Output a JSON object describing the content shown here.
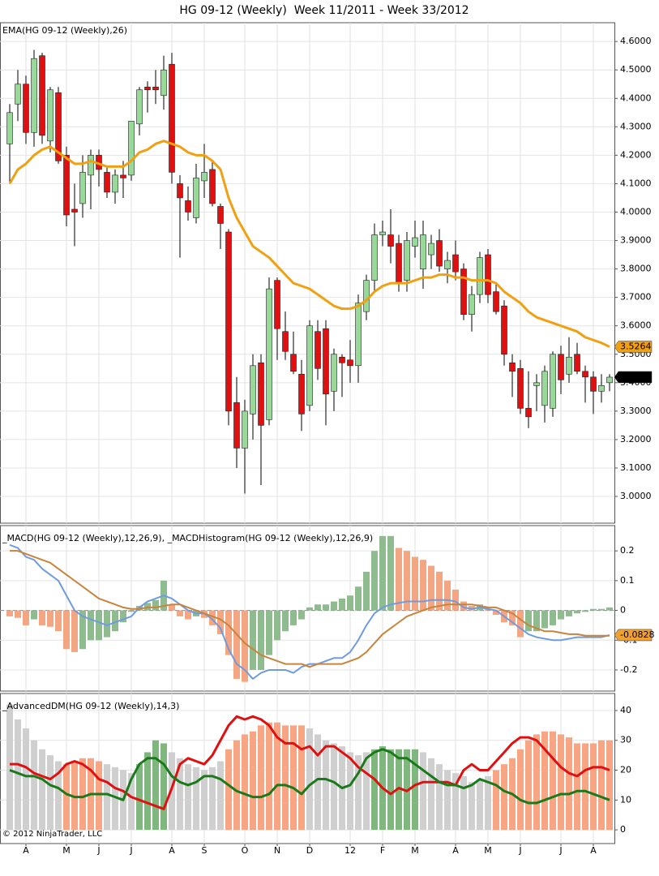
{
  "chart_data": [
    {
      "type": "candlestick",
      "title": "HG 09-12 (Weekly)  Week 11/2011 - Week 33/2012",
      "up_color": "#98d898",
      "down_color": "#e01010",
      "open": [
        4.24,
        4.38,
        4.45,
        4.28,
        4.55,
        4.25,
        4.42,
        4.2,
        4.01,
        4.03,
        4.13,
        4.2,
        4.14,
        4.07,
        4.13,
        4.13,
        4.31,
        4.44,
        4.44,
        4.41,
        4.52,
        4.1,
        4.04,
        3.98,
        4.11,
        4.15,
        4.02,
        3.93,
        3.33,
        3.17,
        3.29,
        3.47,
        3.27,
        3.76,
        3.58,
        3.5,
        3.43,
        3.32,
        3.58,
        3.59,
        3.37,
        3.49,
        3.48,
        3.46,
        3.65,
        3.76,
        3.92,
        3.92,
        3.89,
        3.76,
        3.88,
        3.8,
        3.85,
        3.9,
        3.8,
        3.85,
        3.8,
        3.64,
        3.71,
        3.85,
        3.72,
        3.67,
        3.47,
        3.45,
        3.31,
        3.39,
        3.32,
        3.31,
        3.5,
        3.43,
        3.5,
        3.44,
        3.42,
        3.37,
        3.4
      ],
      "high": [
        4.38,
        4.5,
        4.48,
        4.57,
        4.56,
        4.44,
        4.44,
        4.23,
        4.1,
        4.2,
        4.22,
        4.22,
        4.16,
        4.15,
        4.18,
        4.32,
        4.44,
        4.46,
        4.5,
        4.55,
        4.56,
        4.13,
        4.09,
        4.17,
        4.24,
        4.18,
        4.03,
        3.94,
        3.42,
        3.34,
        3.5,
        3.5,
        3.77,
        3.77,
        3.65,
        3.58,
        3.48,
        3.62,
        3.62,
        3.62,
        3.52,
        3.5,
        3.55,
        3.71,
        3.78,
        3.96,
        3.97,
        4.01,
        3.92,
        3.93,
        3.97,
        3.97,
        3.92,
        3.94,
        3.86,
        3.9,
        3.82,
        3.74,
        3.86,
        3.87,
        3.75,
        3.69,
        3.5,
        3.48,
        3.44,
        3.43,
        3.46,
        3.51,
        3.53,
        3.56,
        3.54,
        3.46,
        3.44,
        3.43,
        3.43
      ],
      "low": [
        4.1,
        4.32,
        4.24,
        4.23,
        4.24,
        4.21,
        4.17,
        3.95,
        3.88,
        3.98,
        4.01,
        4.09,
        4.05,
        4.03,
        4.05,
        4.11,
        4.27,
        4.35,
        4.38,
        4.36,
        4.1,
        3.84,
        3.97,
        3.96,
        4.05,
        4.02,
        3.87,
        3.25,
        3.1,
        3.01,
        3.2,
        3.04,
        3.25,
        3.48,
        3.48,
        3.43,
        3.23,
        3.3,
        3.41,
        3.25,
        3.3,
        3.35,
        3.4,
        3.4,
        3.62,
        3.72,
        3.88,
        3.82,
        3.72,
        3.72,
        3.84,
        3.73,
        3.8,
        3.79,
        3.75,
        3.76,
        3.62,
        3.58,
        3.68,
        3.68,
        3.64,
        3.46,
        3.35,
        3.29,
        3.24,
        3.3,
        3.26,
        3.28,
        3.36,
        3.4,
        3.43,
        3.33,
        3.29,
        3.33,
        3.37
      ],
      "close": [
        4.35,
        4.45,
        4.28,
        4.54,
        4.27,
        4.43,
        4.18,
        3.99,
        4.0,
        4.14,
        4.2,
        4.15,
        4.07,
        4.13,
        4.12,
        4.32,
        4.43,
        4.43,
        4.43,
        4.5,
        4.14,
        4.05,
        4.0,
        4.12,
        4.14,
        4.03,
        3.96,
        3.3,
        3.17,
        3.3,
        3.46,
        3.25,
        3.73,
        3.59,
        3.51,
        3.44,
        3.29,
        3.6,
        3.45,
        3.36,
        3.5,
        3.47,
        3.46,
        3.68,
        3.76,
        3.92,
        3.93,
        3.88,
        3.75,
        3.9,
        3.91,
        3.92,
        3.89,
        3.81,
        3.83,
        3.79,
        3.64,
        3.71,
        3.84,
        3.71,
        3.65,
        3.5,
        3.44,
        3.31,
        3.28,
        3.4,
        3.44,
        3.5,
        3.41,
        3.49,
        3.44,
        3.42,
        3.37,
        3.39,
        3.4195
      ],
      "series": [
        {
          "name": "EMA(HG 09-12 (Weekly),26)",
          "color": "#f0a010",
          "values": [
            4.1,
            4.15,
            4.17,
            4.2,
            4.22,
            4.23,
            4.21,
            4.19,
            4.17,
            4.17,
            4.18,
            4.17,
            4.16,
            4.16,
            4.16,
            4.18,
            4.21,
            4.22,
            4.24,
            4.25,
            4.24,
            4.23,
            4.21,
            4.2,
            4.2,
            4.18,
            4.15,
            4.05,
            3.98,
            3.93,
            3.88,
            3.86,
            3.84,
            3.81,
            3.78,
            3.75,
            3.74,
            3.73,
            3.71,
            3.69,
            3.67,
            3.66,
            3.66,
            3.67,
            3.69,
            3.72,
            3.74,
            3.75,
            3.75,
            3.75,
            3.76,
            3.77,
            3.77,
            3.78,
            3.78,
            3.77,
            3.77,
            3.76,
            3.76,
            3.76,
            3.75,
            3.72,
            3.7,
            3.68,
            3.65,
            3.63,
            3.62,
            3.61,
            3.6,
            3.59,
            3.58,
            3.56,
            3.55,
            3.54,
            3.5264
          ]
        }
      ],
      "ylim": [
        2.906,
        4.666
      ],
      "yticks": [
        {
          "value": 3.0,
          "label": "3.0000"
        },
        {
          "value": 3.1,
          "label": "3.1000"
        },
        {
          "value": 3.2,
          "label": "3.2000"
        },
        {
          "value": 3.3,
          "label": "3.3000"
        },
        {
          "value": 3.4,
          "label": "3.4000"
        },
        {
          "value": 3.5,
          "label": "3.5000"
        },
        {
          "value": 3.6,
          "label": "3.6000"
        },
        {
          "value": 3.7,
          "label": "3.7000"
        },
        {
          "value": 3.8,
          "label": "3.8000"
        },
        {
          "value": 3.9,
          "label": "3.9000"
        },
        {
          "value": 4.0,
          "label": "4.0000"
        },
        {
          "value": 4.1,
          "label": "4.1000"
        },
        {
          "value": 4.2,
          "label": "4.2000"
        },
        {
          "value": 4.3,
          "label": "4.3000"
        },
        {
          "value": 4.4,
          "label": "4.4000"
        },
        {
          "value": 4.5,
          "label": "4.5000"
        },
        {
          "value": 4.6,
          "label": "4.6000"
        }
      ],
      "grid": true
    },
    {
      "type": "macd",
      "label": "_MACD(HG 09-12 (Weekly),12,26,9), _MACDHistogram(HG 09-12 (Weekly),12,26,9)",
      "up_color": "#8fbc8f",
      "down_color": "#f4a582",
      "histogram": [
        -0.02,
        -0.025,
        -0.05,
        -0.03,
        -0.05,
        -0.055,
        -0.07,
        -0.13,
        -0.14,
        -0.13,
        -0.1,
        -0.1,
        -0.09,
        -0.07,
        -0.04,
        -0.005,
        0.015,
        0.025,
        0.035,
        0.1,
        0.02,
        -0.02,
        -0.03,
        -0.02,
        -0.025,
        -0.05,
        -0.08,
        -0.15,
        -0.23,
        -0.24,
        -0.2,
        -0.2,
        -0.15,
        -0.1,
        -0.07,
        -0.05,
        -0.03,
        0.01,
        0.02,
        0.02,
        0.03,
        0.04,
        0.05,
        0.08,
        0.13,
        0.2,
        0.25,
        0.25,
        0.21,
        0.2,
        0.18,
        0.17,
        0.15,
        0.13,
        0.1,
        0.07,
        0.03,
        0.015,
        0.02,
        0.005,
        -0.015,
        -0.04,
        -0.05,
        -0.09,
        -0.07,
        -0.07,
        -0.06,
        -0.05,
        -0.03,
        -0.02,
        -0.01,
        -0.005,
        0.005,
        0.005,
        0.01
      ],
      "series": [
        {
          "color": "#6f9be0",
          "values": [
            0.22,
            0.21,
            0.18,
            0.17,
            0.14,
            0.12,
            0.1,
            0.05,
            0.0,
            -0.02,
            -0.03,
            -0.04,
            -0.05,
            -0.04,
            -0.03,
            -0.02,
            0.01,
            0.03,
            0.04,
            0.05,
            0.04,
            0.02,
            0.0,
            -0.01,
            -0.01,
            -0.03,
            -0.06,
            -0.13,
            -0.18,
            -0.2,
            -0.23,
            -0.21,
            -0.2,
            -0.2,
            -0.2,
            -0.21,
            -0.19,
            -0.18,
            -0.18,
            -0.17,
            -0.16,
            -0.16,
            -0.14,
            -0.1,
            -0.05,
            -0.01,
            0.01,
            0.02,
            0.025,
            0.03,
            0.03,
            0.03,
            0.035,
            0.035,
            0.035,
            0.03,
            0.01,
            0.005,
            0.01,
            0.005,
            0.0,
            -0.02,
            -0.04,
            -0.06,
            -0.08,
            -0.09,
            -0.095,
            -0.1,
            -0.1,
            -0.095,
            -0.09,
            -0.09,
            -0.09,
            -0.09,
            -0.0828
          ]
        },
        {
          "color": "#c8843c",
          "values": [
            0.2,
            0.2,
            0.19,
            0.18,
            0.17,
            0.16,
            0.14,
            0.12,
            0.1,
            0.08,
            0.06,
            0.04,
            0.03,
            0.02,
            0.01,
            0.005,
            0.005,
            0.01,
            0.01,
            0.015,
            0.02,
            0.02,
            0.01,
            0.0,
            -0.01,
            -0.02,
            -0.03,
            -0.05,
            -0.08,
            -0.11,
            -0.13,
            -0.15,
            -0.16,
            -0.17,
            -0.18,
            -0.18,
            -0.18,
            -0.19,
            -0.18,
            -0.18,
            -0.18,
            -0.18,
            -0.17,
            -0.16,
            -0.14,
            -0.11,
            -0.08,
            -0.06,
            -0.04,
            -0.02,
            -0.01,
            0.0,
            0.01,
            0.015,
            0.02,
            0.02,
            0.02,
            0.02,
            0.015,
            0.01,
            0.01,
            0.0,
            -0.01,
            -0.03,
            -0.05,
            -0.06,
            -0.07,
            -0.07,
            -0.075,
            -0.08,
            -0.08,
            -0.085,
            -0.085,
            -0.085,
            -0.085
          ]
        }
      ],
      "ylim": [
        -0.271,
        0.285
      ],
      "yticks": [
        -0.2,
        -0.1,
        0,
        0.1,
        0.2
      ],
      "grid": true,
      "zero_line": true
    },
    {
      "type": "adm",
      "label": "_AdvancedDM(HG 09-12 (Weekly),14,3)",
      "footer": "© 2012 NinjaTrader, LLC",
      "categories": [
        null,
        null,
        "A",
        null,
        null,
        null,
        null,
        "M",
        null,
        null,
        null,
        "J",
        null,
        null,
        null,
        "J",
        null,
        null,
        null,
        null,
        "A",
        null,
        null,
        null,
        "S",
        null,
        null,
        null,
        null,
        "O",
        null,
        null,
        null,
        "N",
        null,
        null,
        null,
        "D",
        null,
        null,
        null,
        null,
        "12",
        null,
        null,
        null,
        "F",
        null,
        null,
        null,
        "M",
        null,
        null,
        null,
        null,
        "A",
        null,
        null,
        null,
        "M",
        null,
        null,
        null,
        "J",
        null,
        null,
        null,
        null,
        "J",
        null,
        null,
        null,
        "A",
        null,
        null
      ],
      "histogram": [
        42,
        37,
        34,
        30,
        27,
        25,
        23,
        22,
        23,
        24,
        24,
        23,
        22,
        21,
        20,
        19,
        22,
        26,
        30,
        29,
        26,
        24,
        22,
        21,
        20,
        21,
        23,
        27,
        30,
        32,
        33,
        35,
        36,
        36,
        35,
        35,
        35,
        34,
        32,
        30,
        29,
        28,
        26,
        25,
        26,
        27,
        28,
        27,
        27,
        27,
        27,
        26,
        24,
        22,
        20,
        19,
        18,
        16,
        17,
        18,
        20,
        22,
        24,
        27,
        30,
        32,
        33,
        33,
        32,
        31,
        29,
        29,
        29,
        30,
        30
      ],
      "histogram_colors": [
        "#cfcfcf",
        "#cfcfcf",
        "#cfcfcf",
        "#cfcfcf",
        "#cfcfcf",
        "#cfcfcf",
        "#cfcfcf",
        "#f7a583",
        "#f7a583",
        "#f7a583",
        "#f7a583",
        "#f7a583",
        "#cfcfcf",
        "#cfcfcf",
        "#cfcfcf",
        "#cfcfcf",
        "#7fb77f",
        "#7fb77f",
        "#7fb77f",
        "#7fb77f",
        "#cfcfcf",
        "#cfcfcf",
        "#cfcfcf",
        "#cfcfcf",
        "#cfcfcf",
        "#cfcfcf",
        "#cfcfcf",
        "#f7a583",
        "#f7a583",
        "#f7a583",
        "#f7a583",
        "#f7a583",
        "#f7a583",
        "#f7a583",
        "#f7a583",
        "#f7a583",
        "#f7a583",
        "#cfcfcf",
        "#cfcfcf",
        "#cfcfcf",
        "#cfcfcf",
        "#cfcfcf",
        "#cfcfcf",
        "#cfcfcf",
        "#cfcfcf",
        "#7fb77f",
        "#7fb77f",
        "#7fb77f",
        "#7fb77f",
        "#7fb77f",
        "#7fb77f",
        "#cfcfcf",
        "#cfcfcf",
        "#cfcfcf",
        "#cfcfcf",
        "#cfcfcf",
        "#cfcfcf",
        "#cfcfcf",
        "#cfcfcf",
        "#cfcfcf",
        "#f7a583",
        "#f7a583",
        "#f7a583",
        "#f7a583",
        "#f7a583",
        "#f7a583",
        "#f7a583",
        "#f7a583",
        "#f7a583",
        "#f7a583",
        "#f7a583",
        "#f7a583",
        "#f7a583",
        "#f7a583",
        "#f7a583"
      ],
      "series": [
        {
          "color": "#e01010",
          "values": [
            22,
            22,
            21,
            19,
            18,
            17,
            19,
            22,
            23,
            22,
            20,
            17,
            16,
            14,
            13,
            11,
            10,
            9,
            8,
            7,
            14,
            22,
            24,
            23,
            22,
            25,
            30,
            35,
            38,
            37,
            38,
            37,
            35,
            31,
            29,
            29,
            27,
            28,
            25,
            28,
            28,
            26,
            24,
            21,
            19,
            17,
            14,
            12,
            14,
            13,
            15,
            16,
            16,
            16,
            16,
            15,
            20,
            22,
            20,
            20,
            23,
            26,
            29,
            31,
            31,
            30,
            27,
            24,
            21,
            19,
            18,
            20,
            21,
            21,
            20
          ]
        },
        {
          "color": "#1a7a1a",
          "values": [
            20,
            19,
            18,
            18,
            17,
            15,
            14,
            12,
            11,
            11,
            12,
            12,
            12,
            11,
            10,
            17,
            22,
            24,
            24,
            22,
            18,
            16,
            15,
            16,
            18,
            18,
            17,
            15,
            13,
            12,
            11,
            11,
            12,
            15,
            15,
            14,
            12,
            15,
            17,
            17,
            16,
            14,
            15,
            19,
            24,
            26,
            27,
            26,
            24,
            24,
            22,
            20,
            18,
            16,
            15,
            15,
            14,
            15,
            17,
            16,
            15,
            13,
            12,
            10,
            9,
            9,
            10,
            11,
            12,
            12,
            13,
            13,
            12,
            11,
            10
          ]
        }
      ],
      "ylim": [
        -4.6,
        45.7
      ],
      "yticks": [
        0,
        10,
        20,
        30,
        40
      ],
      "grid": true
    }
  ]
}
